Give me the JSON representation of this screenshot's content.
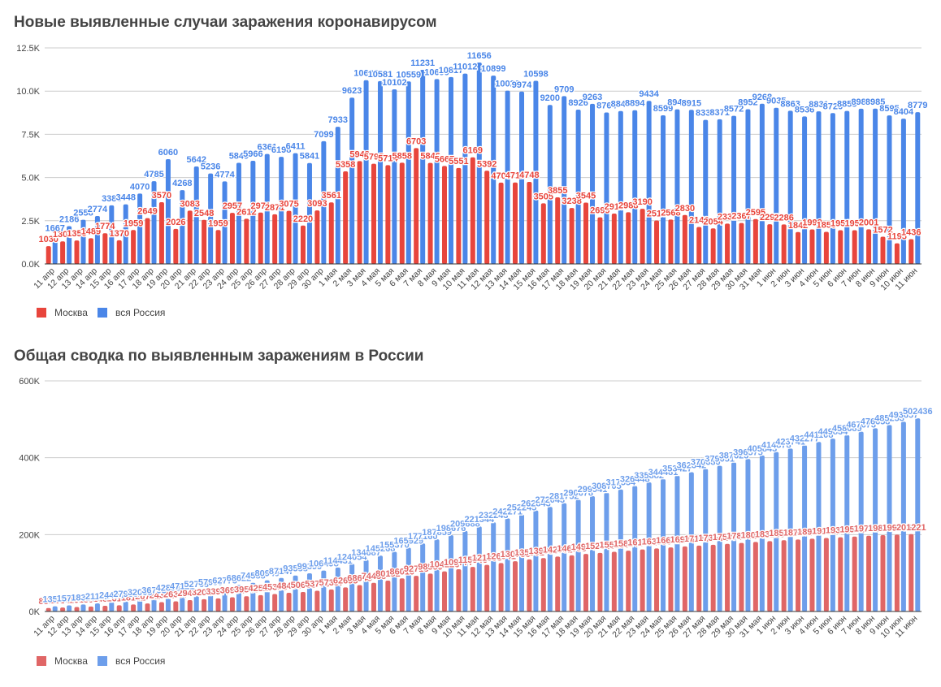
{
  "colors": {
    "moscow_daily": "#e8453c",
    "russia_daily": "#4a86e8",
    "moscow_total": "#e06666",
    "russia_total": "#6d9eeb",
    "grid": "#cccccc",
    "axis": "#333333",
    "text": "#444444"
  },
  "chart_data": [
    {
      "type": "bar",
      "title": "Новые выявленные случаи заражения коронавирусом",
      "xlabel": "",
      "ylabel": "",
      "ylim": [
        0,
        12500
      ],
      "yticks": [
        0,
        2500,
        5000,
        7500,
        10000,
        12500
      ],
      "ytick_labels": [
        "0.0K",
        "2.5K",
        "5.0K",
        "7.5K",
        "10.0K",
        "12.5K"
      ],
      "grid": true,
      "legend_position": "bottom-left",
      "categories": [
        "11 апр",
        "12 апр",
        "13 апр",
        "14 апр",
        "15 апр",
        "16 апр",
        "17 апр",
        "18 апр",
        "19 апр",
        "20 апр",
        "21 апр",
        "22 апр",
        "23 апр",
        "24 апр",
        "25 апр",
        "26 апр",
        "27 апр",
        "28 апр",
        "29 апр",
        "30 апр",
        "1 мая",
        "2 мая",
        "3 мая",
        "4 мая",
        "5 мая",
        "6 мая",
        "7 мая",
        "8 мая",
        "9 мая",
        "10 мая",
        "11 мая",
        "12 мая",
        "13 мая",
        "14 мая",
        "15 мая",
        "16 мая",
        "17 мая",
        "18 мая",
        "19 мая",
        "20 мая",
        "21 мая",
        "22 мая",
        "23 мая",
        "24 мая",
        "25 мая",
        "26 мая",
        "27 мая",
        "28 мая",
        "29 мая",
        "30 мая",
        "31 мая",
        "1 июн",
        "2 июн",
        "3 июн",
        "4 июн",
        "5 июн",
        "6 июн",
        "7 июн",
        "8 июн",
        "9 июн",
        "10 июн",
        "11 июн"
      ],
      "series": [
        {
          "name": "Москва",
          "color_key": "moscow_daily",
          "values": [
            1030,
            1306,
            1355,
            1489,
            1774,
            1370,
            1959,
            2649,
            3570,
            2026,
            3083,
            2548,
            1959,
            2957,
            2612,
            2971,
            2871,
            3075,
            2220,
            3093,
            3561,
            5358,
            5948,
            5795,
            5714,
            5858,
            6703,
            5846,
            5667,
            5551,
            6169,
            5392,
            4703,
            4712,
            4748,
            3505,
            3855,
            3238,
            3545,
            2699,
            2913,
            2988,
            3190,
            2516,
            2568,
            2830,
            2140,
            2054,
            2332,
            2367,
            2595,
            2297,
            2286,
            1842,
            1998,
            1855,
            1951,
            1952,
            2001,
            1572,
            1195,
            1436
          ]
        },
        {
          "name": "вся Россия",
          "color_key": "russia_daily",
          "values": [
            1667,
            2186,
            2558,
            2774,
            3388,
            3448,
            4070,
            4785,
            6060,
            4268,
            5642,
            5236,
            4774,
            5849,
            5966,
            6361,
            6198,
            6411,
            5841,
            7099,
            7933,
            9623,
            10633,
            10581,
            10102,
            10559,
            11231,
            10699,
            10817,
            11012,
            11656,
            10899,
            10028,
            9974,
            10598,
            9200,
            9709,
            8926,
            9263,
            8764,
            8849,
            8894,
            9434,
            8599,
            8946,
            8915,
            8338,
            8371,
            8572,
            8952,
            9268,
            9035,
            8863,
            8536,
            8831,
            8726,
            8855,
            8984,
            8985,
            8595,
            8404,
            8779
          ]
        }
      ]
    },
    {
      "type": "bar",
      "title": "Общая сводка по выявленным заражениям в России",
      "xlabel": "",
      "ylabel": "",
      "ylim": [
        0,
        600000
      ],
      "yticks": [
        0,
        200000,
        400000,
        600000
      ],
      "ytick_labels": [
        "0K",
        "200K",
        "400K",
        "600K"
      ],
      "grid": true,
      "legend_position": "bottom-left",
      "categories": [
        "11 апр",
        "12 апр",
        "13 апр",
        "14 апр",
        "15 апр",
        "16 апр",
        "17 апр",
        "18 апр",
        "19 апр",
        "20 апр",
        "21 апр",
        "22 апр",
        "23 апр",
        "24 апр",
        "25 апр",
        "26 апр",
        "27 апр",
        "28 апр",
        "29 апр",
        "30 апр",
        "1 мая",
        "2 мая",
        "3 мая",
        "4 мая",
        "5 мая",
        "6 мая",
        "7 мая",
        "8 мая",
        "9 мая",
        "10 мая",
        "11 мая",
        "12 мая",
        "13 мая",
        "14 мая",
        "15 мая",
        "16 мая",
        "17 мая",
        "18 мая",
        "19 мая",
        "20 мая",
        "21 мая",
        "22 мая",
        "23 мая",
        "24 мая",
        "25 мая",
        "26 мая",
        "27 мая",
        "28 мая",
        "29 мая",
        "30 мая",
        "31 мая",
        "1 июн",
        "2 июн",
        "3 июн",
        "4 июн",
        "5 июн",
        "6 июн",
        "7 июн",
        "8 июн",
        "9 июн",
        "10 июн",
        "11 июн"
      ],
      "series": [
        {
          "name": "Москва",
          "color_key": "moscow_total",
          "values": [
            8889,
            10195,
            11550,
            13039,
            14813,
            16183,
            18142,
            20791,
            24361,
            26387,
            29470,
            32018,
            33977,
            36934,
            39546,
            42517,
            45388,
            48463,
            50683,
            53776,
            57337,
            62695,
            68643,
            74438,
            80152,
            86010,
            92713,
            98559,
            104226,
            109777,
            115946,
            121338,
            126041,
            130753,
            135501,
            139006,
            142861,
            146099,
            149644,
            152343,
            155256,
            158244,
            161434,
            163950,
            166518,
            169348,
            171488,
            173542,
            175874,
            178241,
            180836,
            183133,
            185419,
            187261,
            189259,
            191114,
            193065,
            195017,
            197018,
            198590,
            199785,
            201221
          ]
        },
        {
          "name": "вся Россия",
          "color_key": "russia_total",
          "values": [
            13584,
            15770,
            18328,
            21102,
            24490,
            27938,
            32008,
            36793,
            42853,
            47121,
            52763,
            57999,
            62773,
            68622,
            74588,
            80949,
            87147,
            93558,
            99399,
            106498,
            114431,
            124054,
            134687,
            145268,
            155370,
            165929,
            177160,
            187859,
            198676,
            209688,
            221344,
            232243,
            242271,
            252245,
            262843,
            272043,
            281752,
            290678,
            299941,
            308705,
            317554,
            326448,
            335882,
            344481,
            353427,
            362342,
            370680,
            379051,
            387623,
            396575,
            405843,
            414878,
            423741,
            432277,
            441108,
            449834,
            458689,
            467673,
            476658,
            485253,
            493657,
            502436
          ]
        }
      ]
    }
  ]
}
